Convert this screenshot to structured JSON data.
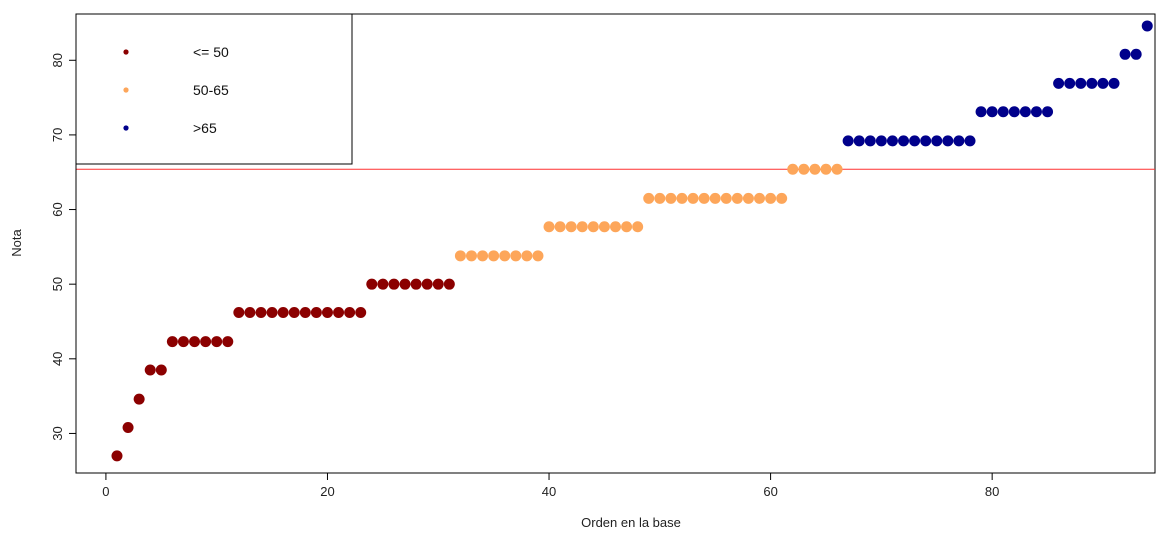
{
  "chart_data": {
    "type": "scatter",
    "title": "",
    "xlabel": "Orden en la base",
    "ylabel": "Nota",
    "xlim": [
      -2.7,
      94.7
    ],
    "ylim": [
      24.7,
      86.2
    ],
    "xticks": [
      "0",
      "20",
      "40",
      "60",
      "80"
    ],
    "yticks": [
      "30",
      "40",
      "50",
      "60",
      "70",
      "80"
    ],
    "hline": {
      "y": 65.4,
      "color": "#ff3030"
    },
    "legend": {
      "position": "top-left",
      "entries": [
        {
          "label": "<= 50",
          "color": "#8b0000"
        },
        {
          "label": "50-65",
          "color": "#fda65a"
        },
        {
          "label": ">65",
          "color": "#00008b"
        }
      ]
    },
    "series": [
      {
        "name": "<= 50",
        "color": "#8b0000",
        "x": [
          1,
          2,
          3,
          4,
          5,
          6,
          7,
          8,
          9,
          10,
          11,
          12,
          13,
          14,
          15,
          16,
          17,
          18,
          19,
          20,
          21,
          22,
          23,
          24,
          25,
          26,
          27,
          28,
          29,
          30,
          31
        ],
        "y": [
          27.0,
          30.8,
          34.6,
          38.5,
          38.5,
          42.3,
          42.3,
          42.3,
          42.3,
          42.3,
          42.3,
          46.2,
          46.2,
          46.2,
          46.2,
          46.2,
          46.2,
          46.2,
          46.2,
          46.2,
          46.2,
          46.2,
          46.2,
          50.0,
          50.0,
          50.0,
          50.0,
          50.0,
          50.0,
          50.0,
          50.0
        ]
      },
      {
        "name": "50-65",
        "color": "#fda65a",
        "x": [
          32,
          33,
          34,
          35,
          36,
          37,
          38,
          39,
          40,
          41,
          42,
          43,
          44,
          45,
          46,
          47,
          48,
          49,
          50,
          51,
          52,
          53,
          54,
          55,
          56,
          57,
          58,
          59,
          60,
          61,
          62,
          63,
          64,
          65,
          66
        ],
        "y": [
          53.8,
          53.8,
          53.8,
          53.8,
          53.8,
          53.8,
          53.8,
          53.8,
          57.7,
          57.7,
          57.7,
          57.7,
          57.7,
          57.7,
          57.7,
          57.7,
          57.7,
          61.5,
          61.5,
          61.5,
          61.5,
          61.5,
          61.5,
          61.5,
          61.5,
          61.5,
          61.5,
          61.5,
          61.5,
          61.5,
          65.4,
          65.4,
          65.4,
          65.4,
          65.4
        ]
      },
      {
        "name": ">65",
        "color": "#00008b",
        "x": [
          67,
          68,
          69,
          70,
          71,
          72,
          73,
          74,
          75,
          76,
          77,
          78,
          79,
          80,
          81,
          82,
          83,
          84,
          85,
          86,
          87,
          88,
          89,
          90,
          91,
          92,
          93,
          94
        ],
        "y": [
          69.2,
          69.2,
          69.2,
          69.2,
          69.2,
          69.2,
          69.2,
          69.2,
          69.2,
          69.2,
          69.2,
          69.2,
          73.1,
          73.1,
          73.1,
          73.1,
          73.1,
          73.1,
          73.1,
          76.9,
          76.9,
          76.9,
          76.9,
          76.9,
          76.9,
          80.8,
          80.8,
          84.6
        ]
      }
    ]
  }
}
